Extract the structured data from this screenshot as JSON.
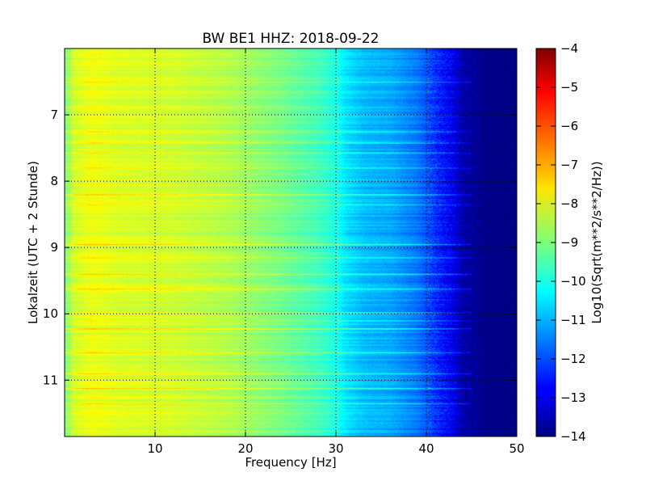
{
  "chart_data": {
    "type": "heatmap",
    "title": "BW BE1 HHZ: 2018-09-22",
    "xlabel": "Frequency [Hz]",
    "ylabel": "Lokalzeit (UTC + 2 Stunde)",
    "xlim": [
      0,
      50
    ],
    "ylim": [
      6.0,
      11.85
    ],
    "y_inverted": true,
    "grid": true,
    "x_ticks": [
      10,
      20,
      30,
      40,
      50
    ],
    "y_ticks": [
      7,
      8,
      9,
      10,
      11
    ],
    "colormap": "jet",
    "colorbar": {
      "label": "Log10(Sqrt(m**2/s**2/Hz))",
      "min": -14,
      "max": -4,
      "ticks": [
        -4,
        -5,
        -6,
        -7,
        -8,
        -9,
        -10,
        -11,
        -12,
        -13,
        -14
      ]
    },
    "frequency_profile": {
      "hz": [
        0,
        1,
        3,
        6,
        12,
        18,
        24,
        28,
        30,
        31,
        33,
        36,
        39,
        41,
        43,
        44,
        46,
        50
      ],
      "level": [
        -9.0,
        -8.2,
        -7.9,
        -8.1,
        -8.2,
        -8.5,
        -9.1,
        -9.6,
        -10.0,
        -10.5,
        -10.9,
        -11.1,
        -11.6,
        -12.3,
        -13.0,
        -13.6,
        -13.9,
        -14.0
      ]
    },
    "bright_bands_hours": [
      6.5,
      7.25,
      7.42,
      7.57,
      7.8,
      8.2,
      8.35,
      8.95,
      9.15,
      9.4,
      9.62,
      9.98,
      10.1,
      10.22,
      10.58,
      10.9,
      11.12,
      11.35
    ]
  }
}
